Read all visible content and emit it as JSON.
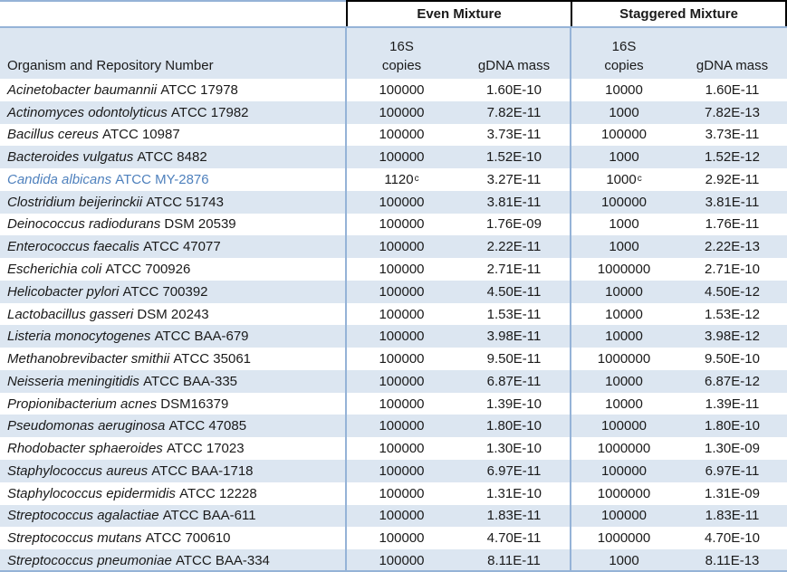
{
  "header": {
    "even": "Even Mixture",
    "staggered": "Staggered Mixture"
  },
  "subheader": {
    "organism": "Organism and Repository Number",
    "s16": "16S",
    "copies": "copies",
    "gdna": "gDNA mass"
  },
  "colors": {
    "row_stripe": "#dce6f1",
    "border_blue": "#95b3d7",
    "border_black": "#000000",
    "highlight_text": "#4f81bd",
    "text": "#1a1a1a"
  },
  "footnote_marker": "c",
  "rows": [
    {
      "organism": "Acinetobacter baumannii",
      "repository": "ATCC 17978",
      "even_copies": "100000",
      "even_copies_sup": "",
      "even_gdna": "1.60E-10",
      "stag_copies": "10000",
      "stag_copies_sup": "",
      "stag_gdna": "1.60E-11",
      "highlight": false
    },
    {
      "organism": "Actinomyces odontolyticus",
      "repository": "ATCC 17982",
      "even_copies": "100000",
      "even_copies_sup": "",
      "even_gdna": "7.82E-11",
      "stag_copies": "1000",
      "stag_copies_sup": "",
      "stag_gdna": "7.82E-13",
      "highlight": false
    },
    {
      "organism": "Bacillus cereus",
      "repository": "ATCC 10987",
      "even_copies": "100000",
      "even_copies_sup": "",
      "even_gdna": "3.73E-11",
      "stag_copies": "100000",
      "stag_copies_sup": "",
      "stag_gdna": "3.73E-11",
      "highlight": false
    },
    {
      "organism": "Bacteroides vulgatus",
      "repository": "ATCC 8482",
      "even_copies": "100000",
      "even_copies_sup": "",
      "even_gdna": "1.52E-10",
      "stag_copies": "1000",
      "stag_copies_sup": "",
      "stag_gdna": "1.52E-12",
      "highlight": false
    },
    {
      "organism": "Candida albicans",
      "repository": "ATCC MY-2876",
      "even_copies": "1120",
      "even_copies_sup": "c",
      "even_gdna": "3.27E-11",
      "stag_copies": "1000",
      "stag_copies_sup": "c",
      "stag_gdna": "2.92E-11",
      "highlight": true
    },
    {
      "organism": "Clostridium beijerinckii",
      "repository": "ATCC 51743",
      "even_copies": "100000",
      "even_copies_sup": "",
      "even_gdna": "3.81E-11",
      "stag_copies": "100000",
      "stag_copies_sup": "",
      "stag_gdna": "3.81E-11",
      "highlight": false
    },
    {
      "organism": "Deinococcus radiodurans",
      "repository": "DSM 20539",
      "even_copies": "100000",
      "even_copies_sup": "",
      "even_gdna": "1.76E-09",
      "stag_copies": "1000",
      "stag_copies_sup": "",
      "stag_gdna": "1.76E-11",
      "highlight": false
    },
    {
      "organism": "Enterococcus faecalis",
      "repository": "ATCC 47077",
      "even_copies": "100000",
      "even_copies_sup": "",
      "even_gdna": "2.22E-11",
      "stag_copies": "1000",
      "stag_copies_sup": "",
      "stag_gdna": "2.22E-13",
      "highlight": false
    },
    {
      "organism": "Escherichia coli",
      "repository": "ATCC 700926",
      "even_copies": "100000",
      "even_copies_sup": "",
      "even_gdna": "2.71E-11",
      "stag_copies": "1000000",
      "stag_copies_sup": "",
      "stag_gdna": "2.71E-10",
      "highlight": false
    },
    {
      "organism": "Helicobacter pylori",
      "repository": "ATCC 700392",
      "even_copies": "100000",
      "even_copies_sup": "",
      "even_gdna": "4.50E-11",
      "stag_copies": "10000",
      "stag_copies_sup": "",
      "stag_gdna": "4.50E-12",
      "highlight": false
    },
    {
      "organism": "Lactobacillus gasseri",
      "repository": "DSM 20243",
      "even_copies": "100000",
      "even_copies_sup": "",
      "even_gdna": "1.53E-11",
      "stag_copies": "10000",
      "stag_copies_sup": "",
      "stag_gdna": "1.53E-12",
      "highlight": false
    },
    {
      "organism": "Listeria monocytogenes",
      "repository": "ATCC BAA-679",
      "even_copies": "100000",
      "even_copies_sup": "",
      "even_gdna": "3.98E-11",
      "stag_copies": "10000",
      "stag_copies_sup": "",
      "stag_gdna": "3.98E-12",
      "highlight": false
    },
    {
      "organism": "Methanobrevibacter smithii",
      "repository": "ATCC 35061",
      "even_copies": "100000",
      "even_copies_sup": "",
      "even_gdna": "9.50E-11",
      "stag_copies": "1000000",
      "stag_copies_sup": "",
      "stag_gdna": "9.50E-10",
      "highlight": false
    },
    {
      "organism": "Neisseria meningitidis",
      "repository": "ATCC BAA-335",
      "even_copies": "100000",
      "even_copies_sup": "",
      "even_gdna": "6.87E-11",
      "stag_copies": "10000",
      "stag_copies_sup": "",
      "stag_gdna": "6.87E-12",
      "highlight": false
    },
    {
      "organism": "Propionibacterium acnes",
      "repository": "DSM16379",
      "even_copies": "100000",
      "even_copies_sup": "",
      "even_gdna": "1.39E-10",
      "stag_copies": "10000",
      "stag_copies_sup": "",
      "stag_gdna": "1.39E-11",
      "highlight": false
    },
    {
      "organism": "Pseudomonas aeruginosa",
      "repository": "ATCC 47085",
      "even_copies": "100000",
      "even_copies_sup": "",
      "even_gdna": "1.80E-10",
      "stag_copies": "100000",
      "stag_copies_sup": "",
      "stag_gdna": "1.80E-10",
      "highlight": false
    },
    {
      "organism": "Rhodobacter sphaeroides",
      "repository": "ATCC 17023",
      "even_copies": "100000",
      "even_copies_sup": "",
      "even_gdna": "1.30E-10",
      "stag_copies": "1000000",
      "stag_copies_sup": "",
      "stag_gdna": "1.30E-09",
      "highlight": false
    },
    {
      "organism": "Staphylococcus aureus",
      "repository": "ATCC BAA-1718",
      "even_copies": "100000",
      "even_copies_sup": "",
      "even_gdna": "6.97E-11",
      "stag_copies": "100000",
      "stag_copies_sup": "",
      "stag_gdna": "6.97E-11",
      "highlight": false
    },
    {
      "organism": "Staphylococcus epidermidis",
      "repository": "ATCC 12228",
      "even_copies": "100000",
      "even_copies_sup": "",
      "even_gdna": "1.31E-10",
      "stag_copies": "1000000",
      "stag_copies_sup": "",
      "stag_gdna": "1.31E-09",
      "highlight": false
    },
    {
      "organism": "Streptococcus agalactiae",
      "repository": "ATCC BAA-611",
      "even_copies": "100000",
      "even_copies_sup": "",
      "even_gdna": "1.83E-11",
      "stag_copies": "100000",
      "stag_copies_sup": "",
      "stag_gdna": "1.83E-11",
      "highlight": false
    },
    {
      "organism": "Streptococcus mutans",
      "repository": "ATCC 700610",
      "even_copies": "100000",
      "even_copies_sup": "",
      "even_gdna": "4.70E-11",
      "stag_copies": "1000000",
      "stag_copies_sup": "",
      "stag_gdna": "4.70E-10",
      "highlight": false
    },
    {
      "organism": "Streptococcus pneumoniae",
      "repository": "ATCC BAA-334",
      "even_copies": "100000",
      "even_copies_sup": "",
      "even_gdna": "8.11E-11",
      "stag_copies": "1000",
      "stag_copies_sup": "",
      "stag_gdna": "8.11E-13",
      "highlight": false
    }
  ]
}
